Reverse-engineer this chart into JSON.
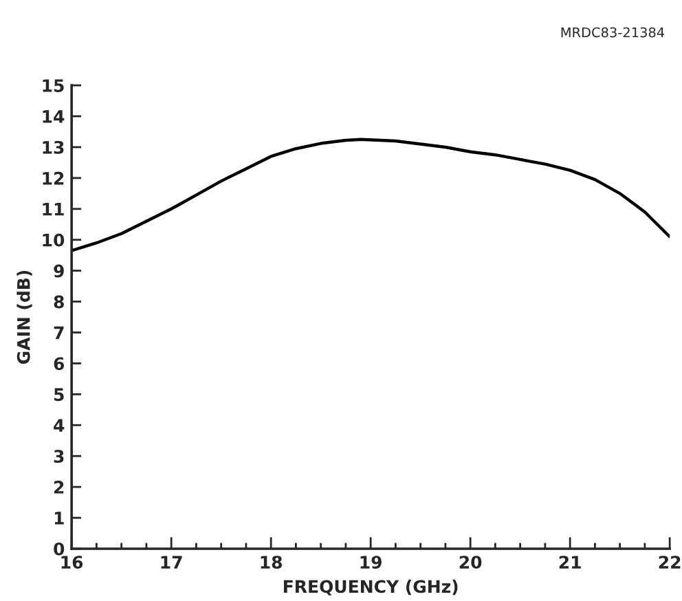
{
  "chart_data": {
    "type": "line",
    "xlabel": "FREQUENCY (GHz)",
    "ylabel": "GAIN (dB)",
    "annotations": [
      "MRDC83-21384"
    ],
    "x": [
      16,
      16.25,
      16.5,
      16.75,
      17,
      17.25,
      17.5,
      17.75,
      18,
      18.25,
      18.5,
      18.75,
      18.9,
      19.25,
      19.5,
      19.75,
      20,
      20.25,
      20.5,
      20.75,
      21,
      21.25,
      21.5,
      21.75,
      22
    ],
    "series": [
      {
        "color": "#000000",
        "values": [
          9.65,
          9.9,
          10.2,
          10.6,
          11.0,
          11.45,
          11.9,
          12.3,
          12.7,
          12.95,
          13.12,
          13.22,
          13.25,
          13.2,
          13.1,
          13.0,
          12.85,
          12.75,
          12.6,
          12.45,
          12.25,
          11.95,
          11.5,
          10.9,
          10.1
        ]
      }
    ],
    "xlim": [
      16,
      22
    ],
    "xticks": [
      16,
      17,
      18,
      19,
      20,
      21,
      22
    ],
    "ylim": [
      0,
      15
    ],
    "yticks": [
      0,
      1,
      2,
      3,
      4,
      5,
      6,
      7,
      8,
      9,
      10,
      11,
      12,
      13,
      14,
      15
    ],
    "grid": false,
    "legend": false
  }
}
